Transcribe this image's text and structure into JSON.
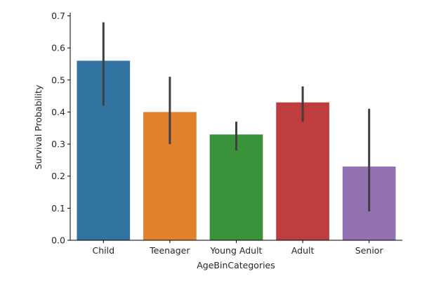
{
  "chart_data": {
    "type": "bar",
    "title": "",
    "xlabel": "AgeBinCategories",
    "ylabel": "Survival Probability",
    "categories": [
      "Child",
      "Teenager",
      "Young Adult",
      "Adult",
      "Senior"
    ],
    "values": [
      0.56,
      0.4,
      0.33,
      0.43,
      0.23
    ],
    "error_bars": [
      [
        0.42,
        0.68
      ],
      [
        0.3,
        0.51
      ],
      [
        0.28,
        0.37
      ],
      [
        0.37,
        0.48
      ],
      [
        0.09,
        0.41
      ]
    ],
    "colors": [
      "#3274a1",
      "#e1812c",
      "#3a923a",
      "#c03d3e",
      "#9372b2"
    ],
    "error_color": "#3f3f3f",
    "ylim": [
      0,
      0.71
    ],
    "yticks": [
      0.0,
      0.1,
      0.2,
      0.3,
      0.4,
      0.5,
      0.6,
      0.7
    ],
    "ytick_labels": [
      "0.0",
      "0.1",
      "0.2",
      "0.3",
      "0.4",
      "0.5",
      "0.6",
      "0.7"
    ],
    "grid": false,
    "legend": "none"
  }
}
